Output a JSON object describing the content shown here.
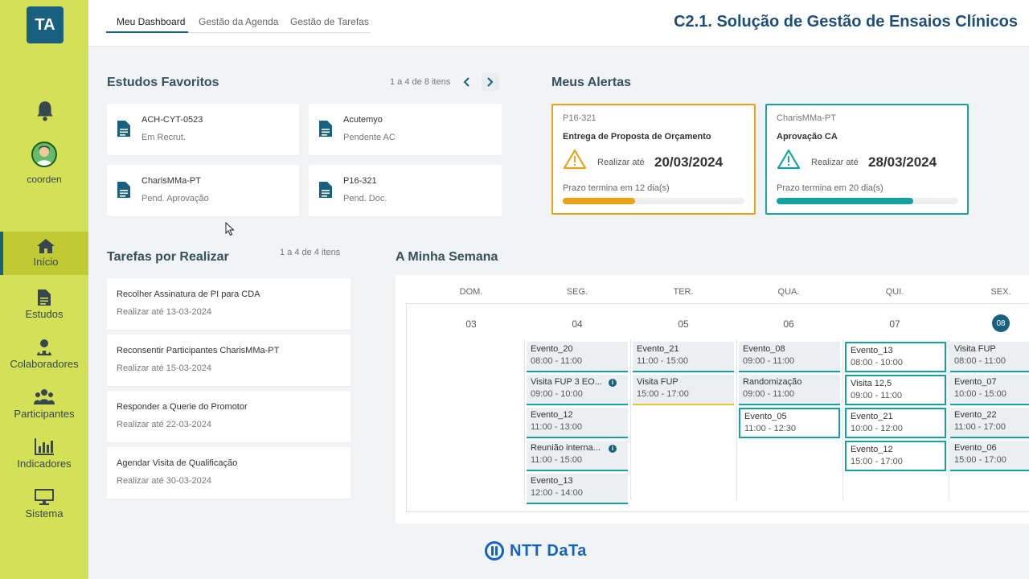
{
  "sidebar": {
    "logo_text": "TA",
    "user_name": "coorden",
    "items": [
      {
        "label": "Início",
        "icon": "home-icon",
        "active": true
      },
      {
        "label": "Estudos",
        "icon": "document-icon"
      },
      {
        "label": "Colaboradores",
        "icon": "collaborators-icon"
      },
      {
        "label": "Participantes",
        "icon": "participants-icon"
      },
      {
        "label": "Indicadores",
        "icon": "bar-chart-icon"
      },
      {
        "label": "Sistema",
        "icon": "monitor-icon"
      }
    ]
  },
  "header": {
    "tabs": [
      {
        "label": "Meu Dashboard",
        "active": true
      },
      {
        "label": "Gestão da Agenda"
      },
      {
        "label": "Gestão de Tarefas"
      }
    ],
    "title": "C2.1. Solução de Gestão de Ensaios Clínicos"
  },
  "favorites": {
    "title": "Estudos Favoritos",
    "pager": "1 a 4 de 8 itens",
    "items": [
      {
        "code": "ACH-CYT-0523",
        "status": "Em Recrut."
      },
      {
        "code": "Acutemyo",
        "status": "Pendente AC"
      },
      {
        "code": "CharisMMa-PT",
        "status": "Pend. Aprovação"
      },
      {
        "code": "P16-321",
        "status": "Pend. Doc."
      }
    ]
  },
  "alerts": {
    "title": "Meus Alertas",
    "items": [
      {
        "code": "P16-321",
        "title": "Entrega de Proposta de Orçamento",
        "label": "Realizar até",
        "date": "20/03/2024",
        "deadline": "Prazo termina em 12 dia(s)",
        "progress": 0.4,
        "color": "#e8a317"
      },
      {
        "code": "CharisMMa-PT",
        "title": "Aprovação CA",
        "label": "Realizar até",
        "date": "28/03/2024",
        "deadline": "Prazo termina em 20 dia(s)",
        "progress": 0.75,
        "color": "#17a2a2"
      }
    ]
  },
  "tasks": {
    "title": "Tarefas por Realizar",
    "pager": "1 a 4 de 4 itens",
    "items": [
      {
        "title": "Recolher Assinatura de PI para CDA",
        "due": "Realizar até 13-03-2024"
      },
      {
        "title": "Reconsentir Participantes CharisMMa-PT",
        "due": "Realizar até 15-03-2024"
      },
      {
        "title": "Responder a Querie do Promotor",
        "due": "Realizar até 22-03-2024"
      },
      {
        "title": "Agendar Visita de Qualificação",
        "due": "Realizar até 30-03-2024"
      }
    ]
  },
  "week": {
    "title": "A Minha Semana",
    "days": [
      {
        "name": "DOM.",
        "num": "03"
      },
      {
        "name": "SEG.",
        "num": "04"
      },
      {
        "name": "TER.",
        "num": "05"
      },
      {
        "name": "QUA.",
        "num": "06"
      },
      {
        "name": "QUI.",
        "num": "07"
      },
      {
        "name": "SEX.",
        "num": "08",
        "today": true
      }
    ],
    "events": {
      "seg": [
        {
          "name": "Evento_20",
          "time": "08:00 - 11:00"
        },
        {
          "name": "Visita FUP 3 EO...",
          "time": "09:00 - 10:00",
          "info": true
        },
        {
          "name": "Evento_12",
          "time": "11:00 - 13:00"
        },
        {
          "name": "Reunião interna...",
          "time": "11:00 - 15:00",
          "info": true
        },
        {
          "name": "Evento_13",
          "time": "12:00 - 14:00"
        }
      ],
      "ter": [
        {
          "name": "Evento_21",
          "time": "11:00 - 15:00"
        },
        {
          "name": "Visita FUP",
          "time": "15:00 - 17:00"
        }
      ],
      "qua": [
        {
          "name": "Evento_08",
          "time": "09:00 - 11:00"
        },
        {
          "name": "Randomização",
          "time": "09:00 - 11:00"
        },
        {
          "name": "Evento_05",
          "time": "11:00 - 12:30"
        }
      ],
      "qui": [
        {
          "name": "Evento_13",
          "time": "08:00 - 10:00"
        },
        {
          "name": "Visita 12,5",
          "time": "09:00 - 11:00"
        },
        {
          "name": "Evento_21",
          "time": "10:00 - 12:00"
        },
        {
          "name": "Evento_12",
          "time": "15:00 - 17:00"
        }
      ],
      "sex": [
        {
          "name": "Visita FUP",
          "time": "08:00 - 11:00"
        },
        {
          "name": "Evento_07",
          "time": "10:00 - 15:00"
        },
        {
          "name": "Evento_22",
          "time": "11:00 - 17:00"
        },
        {
          "name": "Evento_06",
          "time": "15:00 - 17:00"
        }
      ]
    }
  },
  "footer": {
    "brand": "NTT DaTa"
  },
  "colors": {
    "accent": "#17607f",
    "sidebar": "#d4e157",
    "teal": "#17a2a2",
    "amber": "#e8a317"
  }
}
